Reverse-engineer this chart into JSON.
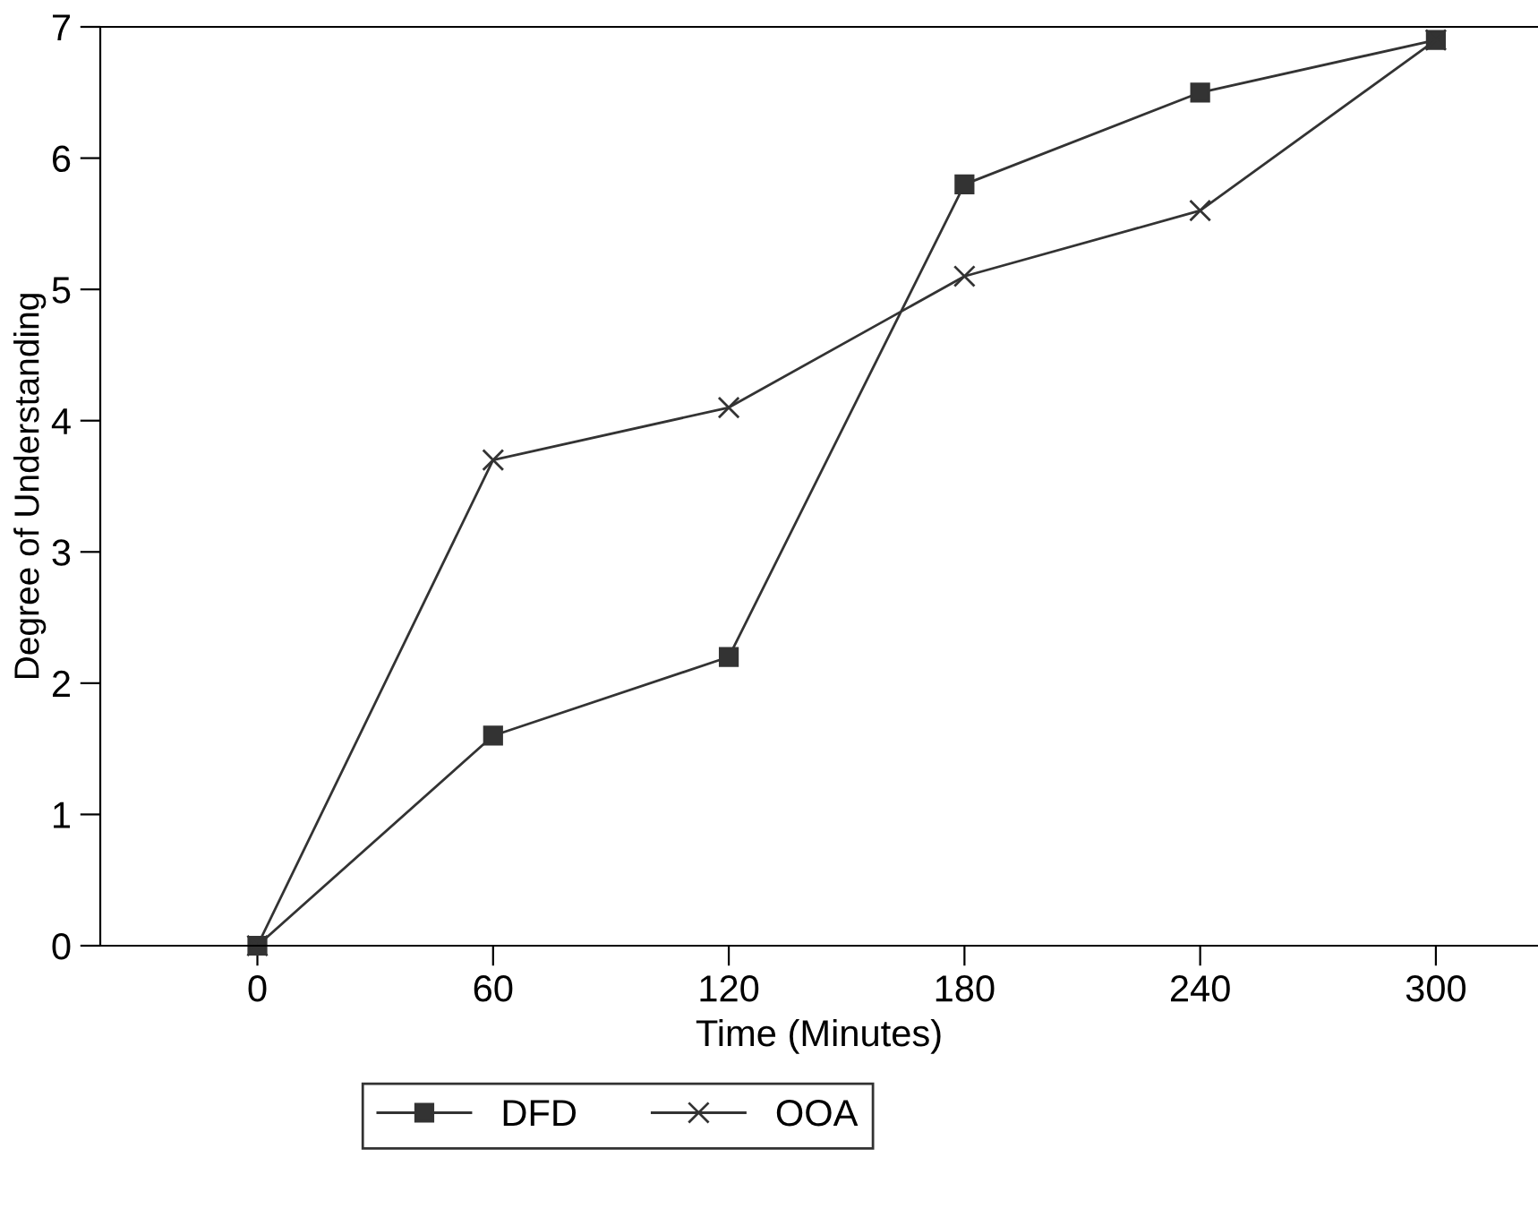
{
  "chart_data": {
    "type": "line",
    "xlabel": "Time (Minutes)",
    "ylabel": "Degree of Understanding",
    "x": [
      0,
      60,
      120,
      180,
      240,
      300
    ],
    "series": [
      {
        "name": "DFD",
        "color": "#333333",
        "marker": "square",
        "values": [
          0,
          1.6,
          2.2,
          5.8,
          6.5,
          6.9
        ]
      },
      {
        "name": "OOA",
        "color": "#333333",
        "marker": "cross",
        "values": [
          0,
          3.7,
          4.1,
          5.1,
          5.6,
          6.9
        ]
      }
    ],
    "xlim": [
      -40,
      326
    ],
    "ylim": [
      0,
      7
    ],
    "xticks": [
      0,
      60,
      120,
      180,
      240,
      300
    ],
    "yticks": [
      0,
      1,
      2,
      3,
      4,
      5,
      6,
      7
    ],
    "grid": false,
    "legend": "bottom",
    "line_style": "solid"
  }
}
